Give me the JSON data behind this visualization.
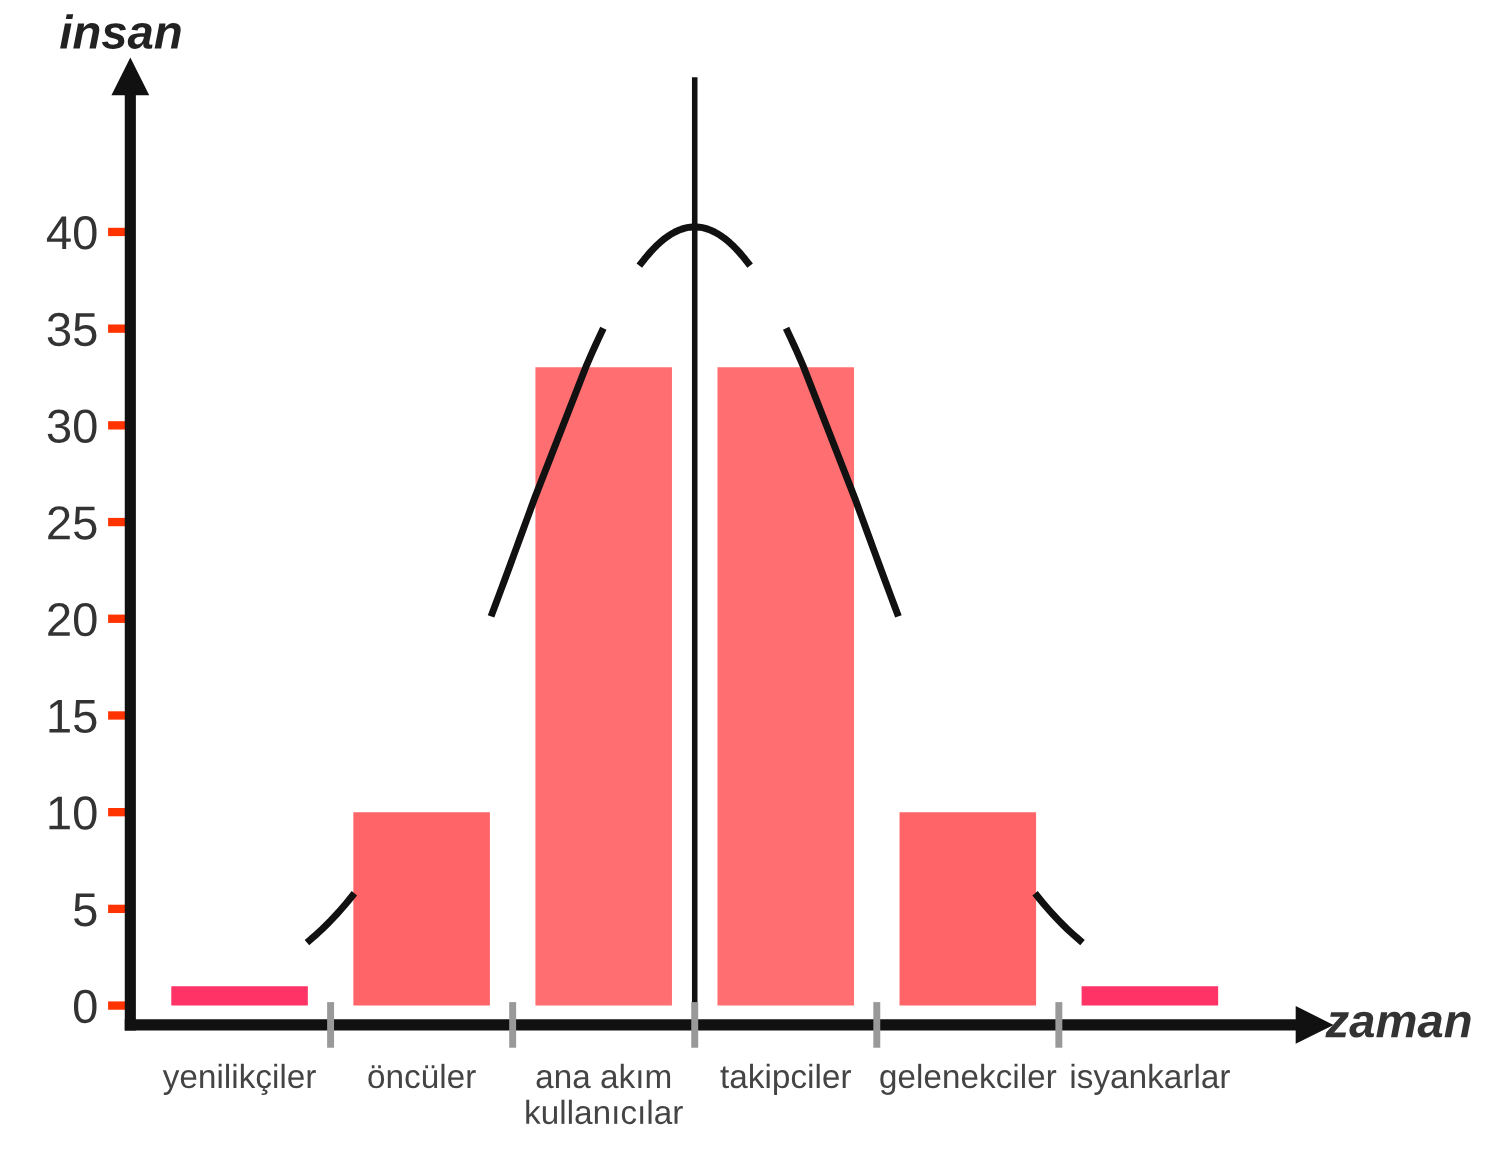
{
  "chart_data": {
    "type": "bar",
    "xlabel": "zaman",
    "ylabel": "insan",
    "categories": [
      "yenilikçiler",
      "öncüler",
      "ana akım\nkullanıcılar",
      "takipciler",
      "gelenekciler",
      "isyankarlar"
    ],
    "values": [
      1,
      10,
      33,
      33,
      10,
      1
    ],
    "colors": [
      "#ff3366",
      "#ff6468",
      "#ff6e70",
      "#ff6e70",
      "#ff6468",
      "#ff3366"
    ],
    "ylim": [
      -1,
      48
    ],
    "yticks": [
      0,
      5,
      10,
      15,
      20,
      25,
      30,
      35,
      40
    ],
    "grid": false,
    "legend": false
  }
}
